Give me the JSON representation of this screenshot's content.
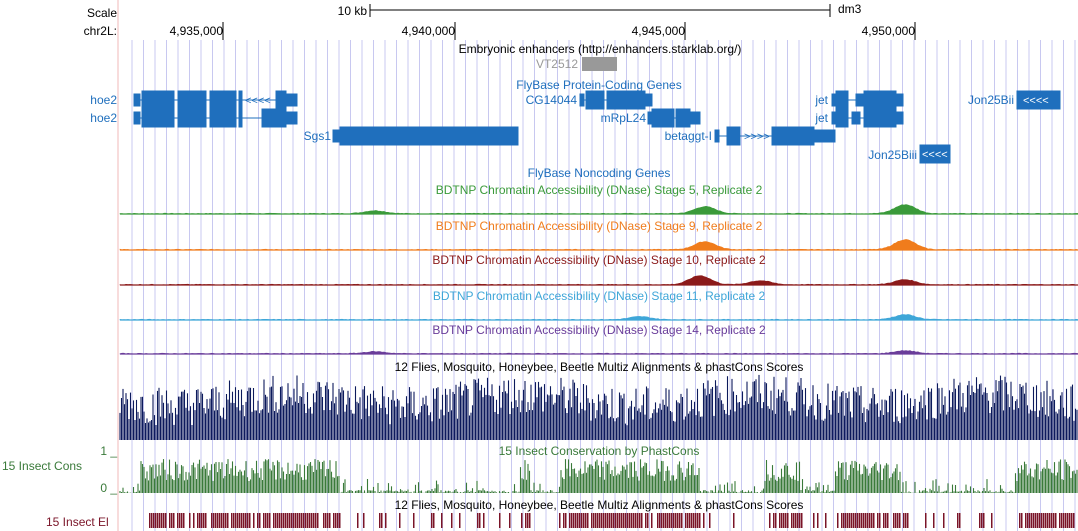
{
  "header": {
    "scale_label": "Scale",
    "scale_bar_label": "10 kb",
    "assembly": "dm3",
    "chrom_label": "chr2L:",
    "positions": [
      "4,935,000",
      "4,940,000",
      "4,945,000",
      "4,950,000"
    ]
  },
  "tracks": {
    "enhancers": {
      "title": "Embryonic enhancers (http://enhancers.starklab.org/)",
      "item": "VT2512"
    },
    "protein_coding": {
      "title": "FlyBase Protein-Coding Genes",
      "genes": [
        "hoe2",
        "hoe2",
        "CG14044",
        "mRpL24",
        "Sgs1",
        "betaggt-I",
        "jet",
        "jet",
        "Jon25Bii",
        "Jon25Biii"
      ]
    },
    "noncoding": {
      "title": "FlyBase Noncoding Genes"
    },
    "dnase": [
      {
        "title": "BDTNP Chromatin Accessibility (DNase) Stage 5, Replicate 2",
        "color": "#3a9a3a"
      },
      {
        "title": "BDTNP Chromatin Accessibility (DNase) Stage 9, Replicate 2",
        "color": "#f07c1c"
      },
      {
        "title": "BDTNP Chromatin Accessibility (DNase) Stage 10, Replicate 2",
        "color": "#8b1a1a"
      },
      {
        "title": "BDTNP Chromatin Accessibility (DNase) Stage 11, Replicate 2",
        "color": "#3ea6d8"
      },
      {
        "title": "BDTNP Chromatin Accessibility (DNase) Stage 14, Replicate 2",
        "color": "#6a3d9a"
      }
    ],
    "multiz": {
      "title": "12 Flies, Mosquito, Honeybee, Beetle Multiz Alignments & phastCons Scores",
      "color": "#0c1a5c"
    },
    "phastcons": {
      "title": "15 Insect Conservation by PhastCons",
      "side_label": "15 Insect Cons",
      "y_max_label": "1 _",
      "y_min_label": "0 _",
      "color": "#3a7a3a"
    },
    "elements": {
      "title": "12 Flies, Mosquito, Honeybee, Beetle Multiz Alignments & phastCons Scores",
      "side_label": "15 Insect El",
      "color": "#7a1428"
    }
  },
  "colors": {
    "gene": "#1f6fbd",
    "grid": "#c8c8f0",
    "cursor_line": "#f0b8b8",
    "enhancer_box": "#999999"
  }
}
